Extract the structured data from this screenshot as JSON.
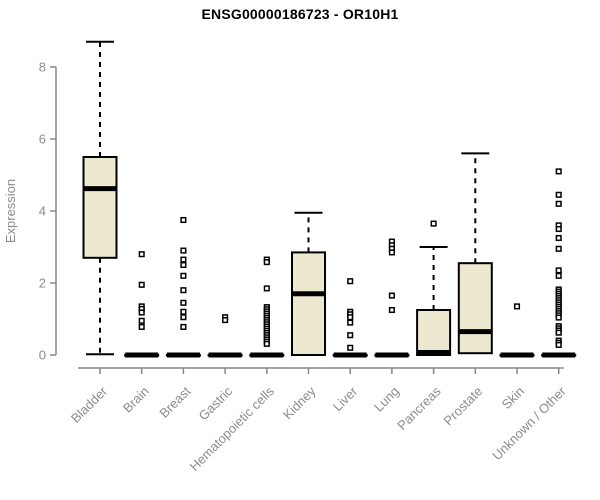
{
  "chart_data": {
    "type": "boxplot",
    "title": "ENSG00000186723 - OR10H1",
    "ylabel": "Expression",
    "xlabel": "",
    "ylim": [
      0,
      8.75
    ],
    "yticks": [
      0,
      2,
      4,
      6,
      8
    ],
    "grid": false,
    "legend": "none",
    "box_fill": "#EDE8D0",
    "box_stroke": "#000000",
    "axis_color": "#878787",
    "tick_label_color": "#8C8C8C",
    "title_color": "#000000",
    "categories": [
      "Bladder",
      "Brain",
      "Breast",
      "Gastric",
      "Hematopoietic cells",
      "Kidney",
      "Liver",
      "Lung",
      "Pancreas",
      "Prostate",
      "Skin",
      "Unknown / Other"
    ],
    "series": [
      {
        "category": "Bladder",
        "whisker_low": 0.02,
        "q1": 2.7,
        "median": 4.62,
        "q3": 5.5,
        "whisker_high": 8.7,
        "outliers": []
      },
      {
        "category": "Brain",
        "whisker_low": 0,
        "q1": 0,
        "median": 0,
        "q3": 0,
        "whisker_high": 0,
        "outliers": [
          2.8,
          1.95,
          1.35,
          1.28,
          1.18,
          0.95,
          0.78
        ]
      },
      {
        "category": "Breast",
        "whisker_low": 0,
        "q1": 0,
        "median": 0,
        "q3": 0,
        "whisker_high": 0,
        "outliers": [
          3.75,
          2.9,
          2.65,
          2.5,
          2.2,
          1.8,
          1.45,
          1.2,
          1.05,
          0.78
        ]
      },
      {
        "category": "Gastric",
        "whisker_low": 0,
        "q1": 0,
        "median": 0,
        "q3": 0,
        "whisker_high": 0,
        "outliers": [
          1.05,
          0.97
        ]
      },
      {
        "category": "Hematopoietic cells",
        "whisker_low": 0,
        "q1": 0,
        "median": 0,
        "q3": 0,
        "whisker_high": 0,
        "outliers": [
          2.65,
          2.58,
          1.85,
          1.33,
          1.27,
          1.21,
          1.15,
          1.09,
          1.03,
          0.97,
          0.91,
          0.85,
          0.79,
          0.73,
          0.67,
          0.61,
          0.55,
          0.49,
          0.43,
          0.37,
          0.31
        ]
      },
      {
        "category": "Kidney",
        "whisker_low": 0,
        "q1": 0,
        "median": 1.7,
        "q3": 2.85,
        "whisker_high": 3.95,
        "outliers": []
      },
      {
        "category": "Liver",
        "whisker_low": 0,
        "q1": 0,
        "median": 0,
        "q3": 0,
        "whisker_high": 0,
        "outliers": [
          2.05,
          1.2,
          1.13,
          1.05,
          0.9,
          0.55,
          0.2
        ]
      },
      {
        "category": "Lung",
        "whisker_low": 0,
        "q1": 0,
        "median": 0,
        "q3": 0,
        "whisker_high": 0,
        "outliers": [
          3.15,
          3.05,
          2.95,
          2.85,
          1.65,
          1.25
        ]
      },
      {
        "category": "Pancreas",
        "whisker_low": 0,
        "q1": 0,
        "median": 0.07,
        "q3": 1.25,
        "whisker_high": 3.0,
        "outliers": [
          3.65
        ]
      },
      {
        "category": "Prostate",
        "whisker_low": 0.05,
        "q1": 0.05,
        "median": 0.65,
        "q3": 2.55,
        "whisker_high": 5.6,
        "outliers": []
      },
      {
        "category": "Skin",
        "whisker_low": 0,
        "q1": 0,
        "median": 0,
        "q3": 0,
        "whisker_high": 0,
        "outliers": [
          1.35
        ]
      },
      {
        "category": "Unknown / Other",
        "whisker_low": 0,
        "q1": 0,
        "median": 0,
        "q3": 0,
        "whisker_high": 0,
        "outliers": [
          5.1,
          4.45,
          4.2,
          3.6,
          3.5,
          3.25,
          2.95,
          2.35,
          2.2,
          1.82,
          1.76,
          1.7,
          1.64,
          1.58,
          1.52,
          1.46,
          1.4,
          1.34,
          1.28,
          1.22,
          1.16,
          1.1,
          1.04,
          0.8,
          0.74,
          0.68,
          0.62,
          0.4,
          0.34,
          0.28
        ]
      }
    ]
  }
}
